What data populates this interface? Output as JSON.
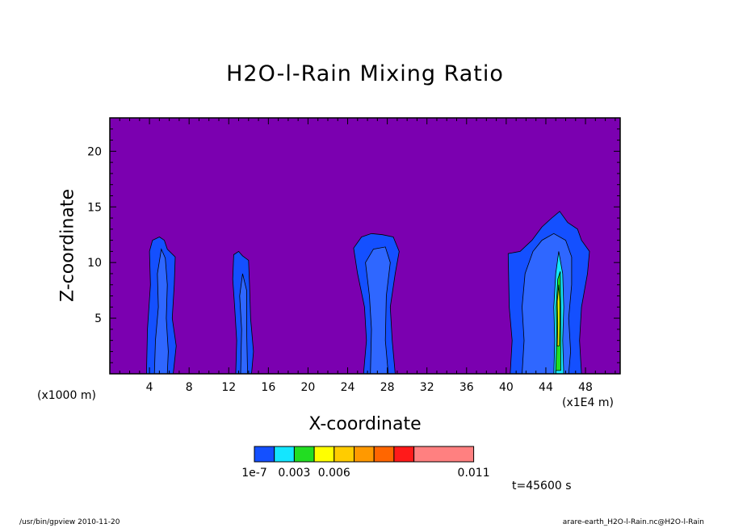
{
  "chart_data": {
    "type": "heatmap",
    "title": "H2O-l-Rain Mixing Ratio",
    "xlabel": "X-coordinate",
    "ylabel": "Z-coordinate",
    "x_unit_label": "(x1000 m)",
    "y_unit_label": "(x1E4 m)",
    "xlim": [
      0,
      51.5
    ],
    "ylim": [
      0,
      23
    ],
    "x_ticks": [
      4,
      8,
      12,
      16,
      20,
      24,
      28,
      32,
      36,
      40,
      44,
      48
    ],
    "y_ticks": [
      5,
      10,
      15,
      20
    ],
    "background_color": "#7b00b0",
    "colorbar": {
      "levels": [
        1e-07,
        0.0015,
        0.003,
        0.0045,
        0.006,
        0.0075,
        0.009,
        0.011
      ],
      "labels": [
        "1e-7",
        "0.003",
        "0.006",
        "0.011"
      ],
      "label_levels": [
        1e-07,
        0.003,
        0.006,
        0.011
      ],
      "colors": [
        "#1450ff",
        "#14e6ff",
        "#22dd22",
        "#ffff00",
        "#ffcc00",
        "#ff9900",
        "#ff6600",
        "#ff1a1a",
        "#ff8080"
      ]
    },
    "cells": [
      {
        "x_left": 3.7,
        "x_right": 6.7,
        "top": 12.3,
        "features": "narrow column x 3.7-6.7 km, top ~12.3 km"
      },
      {
        "x_left": 12.4,
        "x_right": 14.5,
        "top": 11.0,
        "features": "thin column x 12.4-14.5 km, top ~11 km"
      },
      {
        "x_left": 24.6,
        "x_right": 29.2,
        "top": 12.6,
        "features": "column x 24.6-29.2 km, top ~12.6 km"
      },
      {
        "x_left": 40.2,
        "x_right": 48.4,
        "top": 14.6,
        "features": "broad column x 40.2-48.4 km, top ~14.6 km, max ~0.006 near x 45"
      }
    ],
    "time_label": "t=45600 s"
  },
  "footer": {
    "left": "/usr/bin/gpview  2010-11-20",
    "right": "arare-earth_H2O-l-Rain.nc@H2O-l-Rain"
  }
}
